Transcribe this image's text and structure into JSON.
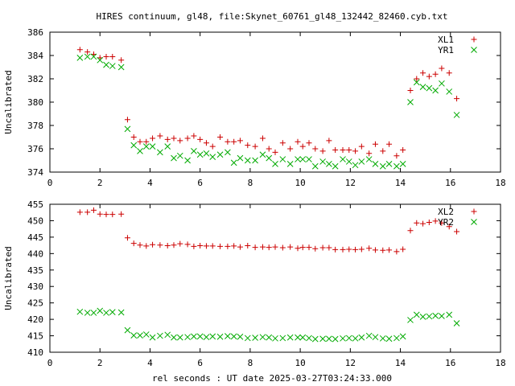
{
  "chart_data": {
    "type": "scatter",
    "title": "HIRES continuum, gl48, file:Skynet_60761_gl48_132442_82460.cyb.txt",
    "xlabel": "rel seconds : UT date 2025-03-27T03:24:33.000",
    "series_colors": {
      "XL": "#cc0000",
      "YR": "#00aa00"
    },
    "markers": {
      "XL": "plus",
      "YR": "cross"
    },
    "legend_position": "top-right",
    "panels": [
      {
        "ylabel": "Uncalibrated",
        "xlim": [
          0,
          18
        ],
        "ylim": [
          374,
          386
        ],
        "x_ticks": [
          "0",
          "2",
          "4",
          "6",
          "8",
          "10",
          "12",
          "14",
          "16",
          "18"
        ],
        "y_ticks": [
          "374",
          "376",
          "378",
          "380",
          "382",
          "384",
          "386"
        ],
        "series": [
          {
            "name": "XL1",
            "x": [
              1.2,
              1.5,
              1.75,
              2.0,
              2.25,
              2.5,
              2.85,
              3.1,
              3.35,
              3.6,
              3.85,
              4.1,
              4.4,
              4.7,
              4.95,
              5.2,
              5.5,
              5.75,
              6.0,
              6.25,
              6.5,
              6.8,
              7.1,
              7.35,
              7.6,
              7.9,
              8.2,
              8.5,
              8.75,
              9.0,
              9.3,
              9.6,
              9.9,
              10.1,
              10.35,
              10.6,
              10.9,
              11.15,
              11.4,
              11.7,
              11.95,
              12.2,
              12.45,
              12.75,
              13.0,
              13.3,
              13.55,
              13.85,
              14.1,
              14.4,
              14.65,
              14.9,
              15.15,
              15.4,
              15.65,
              15.95,
              16.25
            ],
            "y": [
              384.5,
              384.3,
              384.1,
              383.8,
              383.9,
              383.9,
              383.6,
              378.5,
              377.0,
              376.6,
              376.6,
              376.9,
              377.1,
              376.8,
              376.9,
              376.7,
              376.9,
              377.1,
              376.8,
              376.5,
              376.2,
              377.0,
              376.6,
              376.6,
              376.7,
              376.3,
              376.2,
              376.9,
              376.0,
              375.7,
              376.5,
              376.0,
              376.6,
              376.2,
              376.5,
              376.0,
              375.8,
              376.7,
              375.9,
              375.9,
              375.9,
              375.8,
              376.2,
              375.6,
              376.4,
              375.8,
              376.4,
              375.4,
              375.9,
              381.0,
              382.0,
              382.5,
              382.2,
              382.4,
              382.9,
              382.5,
              380.3
            ]
          },
          {
            "name": "YR1",
            "x": [
              1.2,
              1.5,
              1.75,
              2.0,
              2.25,
              2.5,
              2.85,
              3.1,
              3.35,
              3.6,
              3.85,
              4.1,
              4.4,
              4.7,
              4.95,
              5.2,
              5.5,
              5.75,
              6.0,
              6.25,
              6.5,
              6.8,
              7.1,
              7.35,
              7.6,
              7.9,
              8.2,
              8.5,
              8.75,
              9.0,
              9.3,
              9.6,
              9.9,
              10.1,
              10.35,
              10.6,
              10.9,
              11.15,
              11.4,
              11.7,
              11.95,
              12.2,
              12.45,
              12.75,
              13.0,
              13.3,
              13.55,
              13.85,
              14.1,
              14.4,
              14.65,
              14.9,
              15.15,
              15.4,
              15.65,
              15.95,
              16.25
            ],
            "y": [
              383.8,
              383.9,
              383.9,
              383.6,
              383.2,
              383.1,
              383.0,
              377.7,
              376.3,
              375.8,
              376.2,
              376.2,
              375.7,
              376.2,
              375.2,
              375.4,
              375.0,
              375.8,
              375.5,
              375.6,
              375.3,
              375.5,
              375.7,
              374.8,
              375.2,
              375.0,
              375.0,
              375.5,
              375.2,
              374.7,
              375.1,
              374.7,
              375.1,
              375.1,
              375.1,
              374.5,
              374.9,
              374.7,
              374.5,
              375.1,
              374.9,
              374.6,
              374.9,
              375.1,
              374.7,
              374.5,
              374.7,
              374.5,
              374.7,
              380.0,
              381.7,
              381.3,
              381.2,
              381.0,
              381.6,
              380.9,
              378.9
            ]
          }
        ]
      },
      {
        "ylabel": "Uncalibrated",
        "xlim": [
          0,
          18
        ],
        "ylim": [
          410,
          455
        ],
        "x_ticks": [
          "0",
          "2",
          "4",
          "6",
          "8",
          "10",
          "12",
          "14",
          "16",
          "18"
        ],
        "y_ticks": [
          "410",
          "415",
          "420",
          "425",
          "430",
          "435",
          "440",
          "445",
          "450",
          "455"
        ],
        "series": [
          {
            "name": "XL2",
            "x": [
              1.2,
              1.5,
              1.75,
              2.0,
              2.25,
              2.5,
              2.85,
              3.1,
              3.35,
              3.6,
              3.85,
              4.1,
              4.4,
              4.7,
              4.95,
              5.2,
              5.5,
              5.75,
              6.0,
              6.25,
              6.5,
              6.8,
              7.1,
              7.35,
              7.6,
              7.9,
              8.2,
              8.5,
              8.75,
              9.0,
              9.3,
              9.6,
              9.9,
              10.1,
              10.35,
              10.6,
              10.9,
              11.15,
              11.4,
              11.7,
              11.95,
              12.2,
              12.45,
              12.75,
              13.0,
              13.3,
              13.55,
              13.85,
              14.1,
              14.4,
              14.65,
              14.9,
              15.15,
              15.4,
              15.65,
              15.95,
              16.25
            ],
            "y": [
              452.6,
              452.6,
              453.2,
              452.0,
              451.9,
              451.9,
              452.0,
              444.8,
              443.1,
              442.6,
              442.3,
              442.7,
              442.6,
              442.4,
              442.6,
              443.0,
              442.8,
              442.2,
              442.4,
              442.3,
              442.3,
              442.2,
              442.2,
              442.3,
              442.0,
              442.4,
              441.9,
              442.0,
              441.9,
              442.0,
              441.8,
              442.0,
              441.6,
              441.9,
              441.9,
              441.5,
              441.8,
              441.8,
              441.2,
              441.2,
              441.3,
              441.2,
              441.3,
              441.6,
              441.1,
              441.0,
              441.1,
              440.6,
              441.3,
              447.0,
              449.3,
              449.1,
              449.5,
              449.9,
              449.3,
              448.2,
              446.7
            ]
          },
          {
            "name": "YR2",
            "x": [
              1.2,
              1.5,
              1.75,
              2.0,
              2.25,
              2.5,
              2.85,
              3.1,
              3.35,
              3.6,
              3.85,
              4.1,
              4.4,
              4.7,
              4.95,
              5.2,
              5.5,
              5.75,
              6.0,
              6.25,
              6.5,
              6.8,
              7.1,
              7.35,
              7.6,
              7.9,
              8.2,
              8.5,
              8.75,
              9.0,
              9.3,
              9.6,
              9.9,
              10.1,
              10.35,
              10.6,
              10.9,
              11.15,
              11.4,
              11.7,
              11.95,
              12.2,
              12.45,
              12.75,
              13.0,
              13.3,
              13.55,
              13.85,
              14.1,
              14.4,
              14.65,
              14.9,
              15.15,
              15.4,
              15.65,
              15.95,
              16.25
            ],
            "y": [
              422.3,
              422.0,
              422.0,
              422.6,
              422.0,
              422.2,
              422.1,
              416.7,
              415.1,
              415.1,
              415.4,
              414.5,
              415.0,
              415.3,
              414.5,
              414.5,
              414.6,
              414.8,
              414.8,
              414.6,
              414.8,
              414.7,
              414.9,
              414.8,
              414.7,
              414.3,
              414.4,
              414.6,
              414.5,
              414.2,
              414.3,
              414.5,
              414.5,
              414.5,
              414.3,
              414.0,
              414.1,
              414.1,
              414.0,
              414.2,
              414.3,
              414.2,
              414.5,
              415.0,
              414.6,
              414.2,
              414.1,
              414.3,
              414.8,
              419.8,
              421.4,
              420.8,
              420.9,
              421.1,
              421.0,
              421.4,
              418.8
            ]
          }
        ]
      }
    ]
  }
}
